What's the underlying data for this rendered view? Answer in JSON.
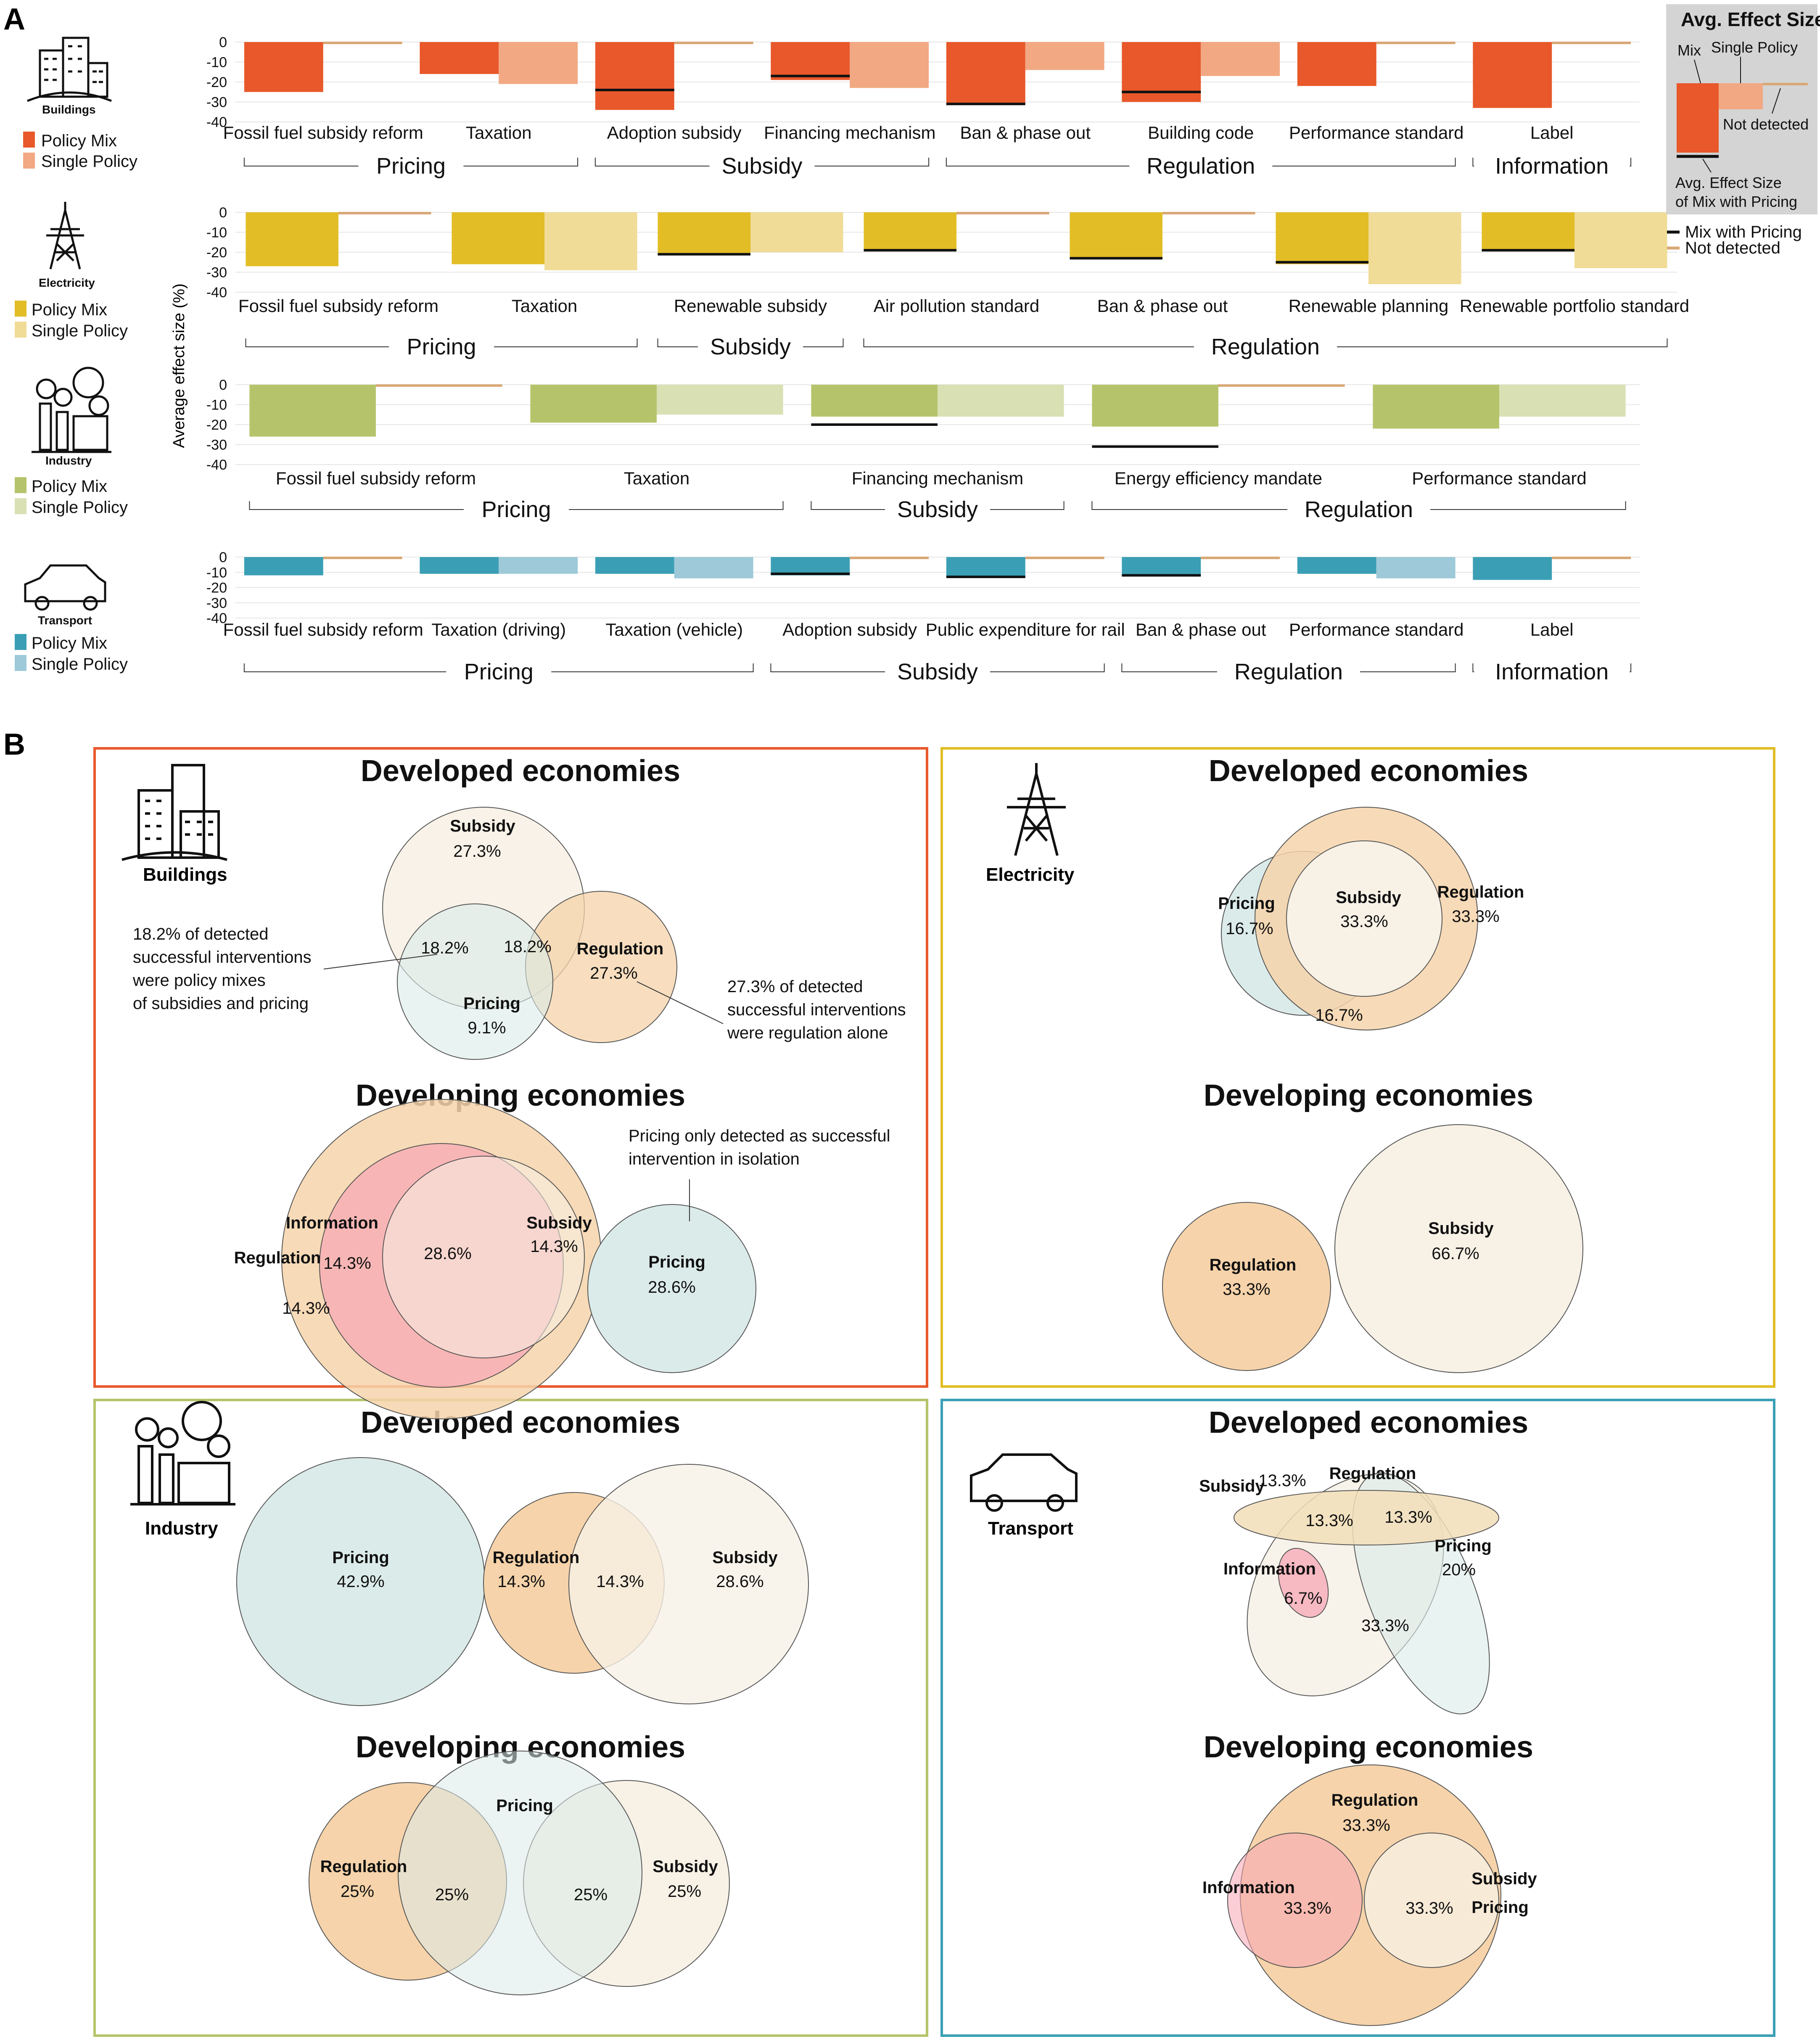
{
  "panel_letters": [
    "A",
    "B"
  ],
  "legend_box": {
    "title": "Avg. Effect Size",
    "mix": "Mix",
    "single": "Single Policy",
    "not_detected": "Not detected",
    "avg_line_1": "Avg. Effect Size",
    "avg_line_2": "of Mix with Pricing"
  },
  "legend_lines": {
    "mix_with_pricing": "Mix with Pricing",
    "not_detected": "Not detected"
  },
  "ylabel": "Average effect size (%)",
  "ylim": [
    -40,
    0
  ],
  "yticks": [
    "0",
    "-10",
    "-20",
    "-30",
    "-40"
  ],
  "colors": {
    "buildings": {
      "mix": "#e8582a",
      "single": "#f2a882"
    },
    "electricity": {
      "mix": "#e2bd25",
      "single": "#f0dc96"
    },
    "industry": {
      "mix": "#b5c46a",
      "single": "#d9e0b4"
    },
    "transport": {
      "mix": "#3a9fb5",
      "single": "#9dc9d8"
    },
    "not_detected": "#d9a877",
    "pricing_line": "#111111",
    "venn_pricing": "#dbebe9",
    "venn_subsidy": "#f7f1e6",
    "venn_regulation": "#f6d3aa",
    "venn_information": "#f7a6b4"
  },
  "chart_data": [
    {
      "type": "bar",
      "sector": "Buildings",
      "legend": [
        "Policy Mix",
        "Single Policy"
      ],
      "categories": [
        "Fossil fuel subsidy reform",
        "Taxation",
        "Adoption subsidy",
        "Financing mechanism",
        "Ban & phase out",
        "Building code",
        "Performance standard",
        "Label"
      ],
      "series": [
        {
          "name": "Policy Mix",
          "values": [
            -25,
            -16,
            -34,
            -19,
            -31,
            -30,
            -22,
            -33
          ]
        },
        {
          "name": "Single Policy",
          "values": [
            null,
            -21,
            null,
            -23,
            -14,
            -17,
            null,
            null
          ]
        }
      ],
      "mix_with_pricing": [
        null,
        null,
        -24,
        -17,
        -31,
        -25,
        null,
        null
      ],
      "groups": [
        {
          "label": "Pricing",
          "span": [
            0,
            1
          ]
        },
        {
          "label": "Subsidy",
          "span": [
            2,
            3
          ]
        },
        {
          "label": "Regulation",
          "span": [
            4,
            6
          ]
        },
        {
          "label": "Information",
          "span": [
            7,
            7
          ]
        }
      ]
    },
    {
      "type": "bar",
      "sector": "Electricity",
      "legend": [
        "Policy Mix",
        "Single Policy"
      ],
      "categories": [
        "Fossil fuel subsidy reform",
        "Taxation",
        "Renewable subsidy",
        "Air pollution standard",
        "Ban & phase out",
        "Renewable planning",
        "Renewable portfolio standard"
      ],
      "series": [
        {
          "name": "Policy Mix",
          "values": [
            -27,
            -26,
            -21,
            -19,
            -23,
            -26,
            -19
          ]
        },
        {
          "name": "Single Policy",
          "values": [
            null,
            -29,
            -20,
            null,
            null,
            -36,
            -28
          ]
        }
      ],
      "mix_with_pricing": [
        null,
        null,
        -21,
        -19,
        -23,
        -25,
        -19
      ],
      "groups": [
        {
          "label": "Pricing",
          "span": [
            0,
            1
          ]
        },
        {
          "label": "Subsidy",
          "span": [
            2,
            2
          ]
        },
        {
          "label": "Regulation",
          "span": [
            3,
            6
          ]
        }
      ]
    },
    {
      "type": "bar",
      "sector": "Industry",
      "legend": [
        "Policy Mix",
        "Single Policy"
      ],
      "categories": [
        "Fossil fuel subsidy reform",
        "Taxation",
        "Financing mechanism",
        "Energy efficiency mandate",
        "Performance standard"
      ],
      "series": [
        {
          "name": "Policy Mix",
          "values": [
            -26,
            -19,
            -16,
            -21,
            -22
          ]
        },
        {
          "name": "Single Policy",
          "values": [
            null,
            -15,
            -16,
            null,
            -16
          ]
        }
      ],
      "mix_with_pricing": [
        null,
        null,
        -20,
        -31,
        null
      ],
      "groups": [
        {
          "label": "Pricing",
          "span": [
            0,
            1
          ]
        },
        {
          "label": "Subsidy",
          "span": [
            2,
            2
          ]
        },
        {
          "label": "Regulation",
          "span": [
            3,
            4
          ]
        }
      ]
    },
    {
      "type": "bar",
      "sector": "Transport",
      "legend": [
        "Policy Mix",
        "Single Policy"
      ],
      "categories": [
        "Fossil fuel subsidy reform",
        "Taxation (driving)",
        "Taxation (vehicle)",
        "Adoption subsidy",
        "Public expenditure for rail",
        "Ban & phase out",
        "Performance standard",
        "Label"
      ],
      "series": [
        {
          "name": "Policy Mix",
          "values": [
            -12,
            -11,
            -11,
            -12,
            -13,
            -12,
            -11,
            -15
          ]
        },
        {
          "name": "Single Policy",
          "values": [
            null,
            -11,
            -14,
            null,
            null,
            null,
            -14,
            null
          ]
        }
      ],
      "mix_with_pricing": [
        null,
        null,
        null,
        -11,
        -13,
        -12,
        null,
        null
      ],
      "groups": [
        {
          "label": "Pricing",
          "span": [
            0,
            2
          ]
        },
        {
          "label": "Subsidy",
          "span": [
            3,
            4
          ]
        },
        {
          "label": "Regulation",
          "span": [
            5,
            6
          ]
        },
        {
          "label": "Information",
          "span": [
            7,
            7
          ]
        }
      ]
    }
  ],
  "venn": {
    "developed": "Developed economies",
    "developing": "Developing economies",
    "sectors": {
      "buildings": {
        "name": "Buildings",
        "developed": {
          "subsidy": "Subsidy",
          "subsidy_pct": "27.3%",
          "pricing": "Pricing",
          "pricing_pct": "9.1%",
          "regulation": "Regulation",
          "regulation_pct": "27.3%",
          "sub_pri": "18.2%",
          "sub_reg": "18.2%"
        },
        "developing": {
          "information": "Information",
          "regulation": "Regulation",
          "subsidy": "Subsidy",
          "center": "28.6%",
          "info_pct": "14.3%",
          "reg_pct": "14.3%",
          "sub_pct": "14.3%",
          "pricing": "Pricing",
          "pricing_pct": "28.6%"
        },
        "notes": {
          "left_1": "18.2% of detected",
          "left_2": "successful interventions",
          "left_3": "were policy mixes",
          "left_4": "of subsidies and pricing",
          "right_1": "27.3% of detected",
          "right_2": "successful interventions",
          "right_3": "were regulation alone",
          "top_1": "Pricing only detected as successful",
          "top_2": "intervention in isolation"
        }
      },
      "electricity": {
        "name": "Electricity",
        "developed": {
          "pricing": "Pricing",
          "pricing_pct": "16.7%",
          "subsidy": "Subsidy",
          "subsidy_pct": "33.3%",
          "regulation": "Regulation",
          "regulation_pct": "33.3%",
          "pri_reg": "16.7%"
        },
        "developing": {
          "regulation": "Regulation",
          "regulation_pct": "33.3%",
          "subsidy": "Subsidy",
          "subsidy_pct": "66.7%"
        }
      },
      "industry": {
        "name": "Industry",
        "developed": {
          "pricing": "Pricing",
          "pricing_pct": "42.9%",
          "regulation": "Regulation",
          "regulation_pct": "14.3%",
          "reg_sub": "14.3%",
          "subsidy": "Subsidy",
          "subsidy_pct": "28.6%"
        },
        "developing": {
          "pricing": "Pricing",
          "regulation": "Regulation",
          "regulation_pct": "25%",
          "reg_pri": "25%",
          "pri_sub": "25%",
          "subsidy": "Subsidy",
          "subsidy_pct": "25%"
        }
      },
      "transport": {
        "name": "Transport",
        "developed": {
          "subsidy": "Subsidy",
          "subsidy_pct": "13.3%",
          "regulation": "Regulation",
          "sub_reg": "13.3%",
          "reg_pri": "13.3%",
          "information": "Information",
          "info_pct": "6.7%",
          "pricing": "Pricing",
          "pricing_pct": "20%",
          "center": "33.3%"
        },
        "developing": {
          "regulation": "Regulation",
          "regulation_pct": "33.3%",
          "information": "Information",
          "info_pct": "33.3%",
          "subsidy": "Subsidy",
          "pricing": "Pricing",
          "sub_pri_pct": "33.3%"
        }
      }
    }
  }
}
